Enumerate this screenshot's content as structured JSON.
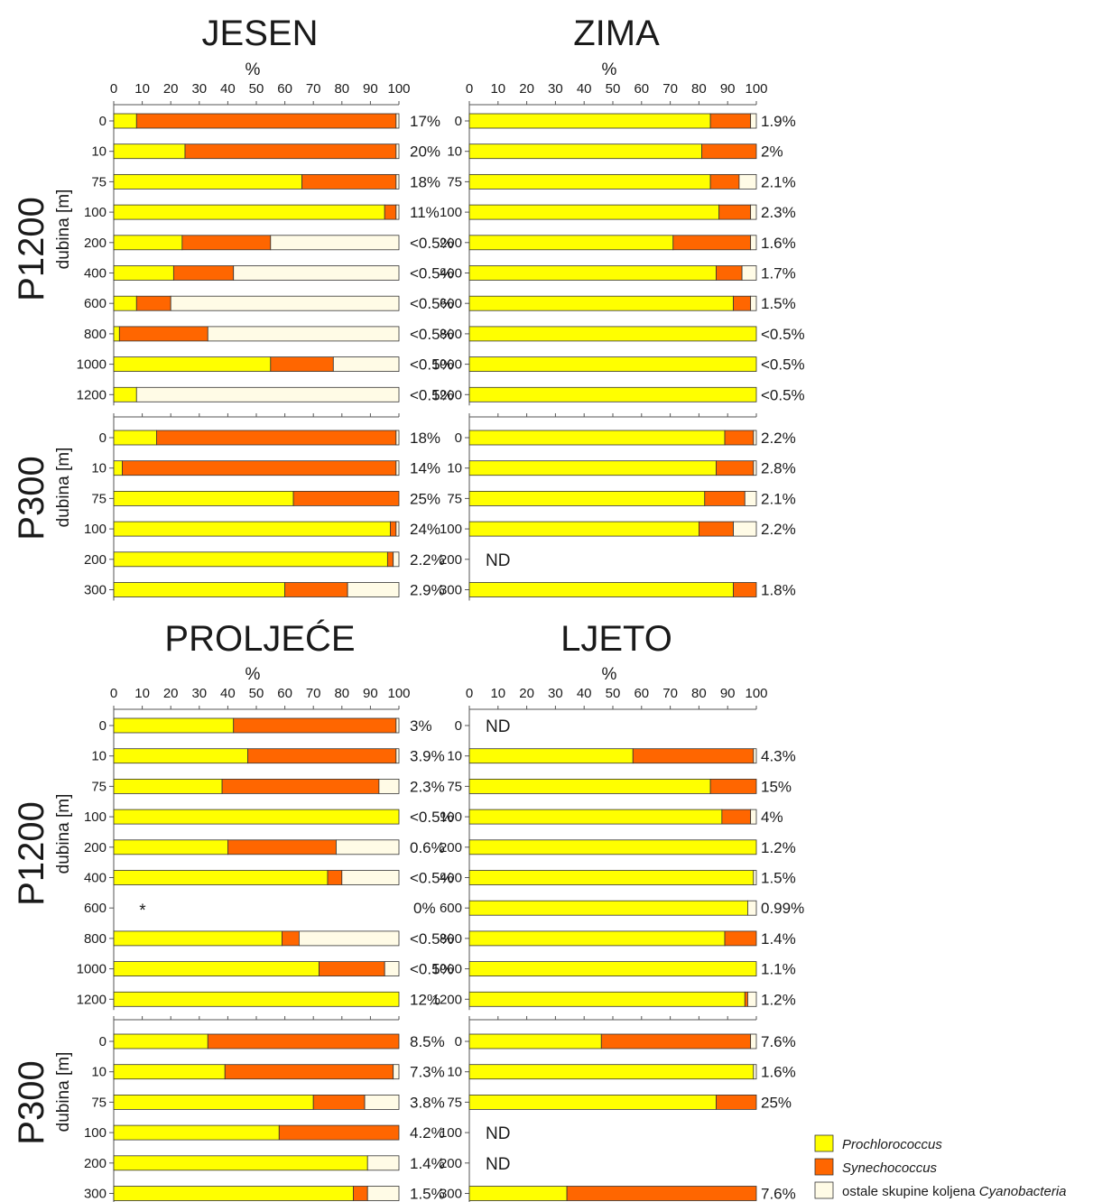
{
  "colors": {
    "Prochlorococcus": "#ffff00",
    "Synechococcus": "#ff6600",
    "ostale": "#fffbe6",
    "outline": "#333333"
  },
  "legend": [
    {
      "key": "Prochlorococcus",
      "label": "Prochlorococcus",
      "italic": true
    },
    {
      "key": "Synechococcus",
      "label": "Synechococcus",
      "italic": true
    },
    {
      "key": "ostale",
      "label_plain": "ostale skupine koljena ",
      "label_italic": "Cyanobacteria"
    }
  ],
  "chart_data": {
    "type": "bar",
    "stacked": true,
    "orientation": "horizontal",
    "xlabel": "%",
    "ylabel": "dubina [m]",
    "xlim": [
      0,
      100
    ],
    "xticks": [
      0,
      10,
      20,
      30,
      40,
      50,
      60,
      70,
      80,
      90,
      100
    ],
    "seasons": [
      {
        "title": "JESEN",
        "stations": [
          {
            "name": "P1200",
            "rows": [
              {
                "depth": "0",
                "values": [
                  8,
                  91,
                  1
                ],
                "label": "17%"
              },
              {
                "depth": "10",
                "values": [
                  25,
                  74,
                  1
                ],
                "label": "20%"
              },
              {
                "depth": "75",
                "values": [
                  66,
                  33,
                  1
                ],
                "label": "18%"
              },
              {
                "depth": "100",
                "values": [
                  95,
                  4,
                  1
                ],
                "label": "11%"
              },
              {
                "depth": "200",
                "values": [
                  24,
                  31,
                  45
                ],
                "label": "<0.5%"
              },
              {
                "depth": "400",
                "values": [
                  21,
                  21,
                  58
                ],
                "label": "<0.5%"
              },
              {
                "depth": "600",
                "values": [
                  8,
                  12,
                  80
                ],
                "label": "<0.5%"
              },
              {
                "depth": "800",
                "values": [
                  2,
                  31,
                  67
                ],
                "label": "<0.5%"
              },
              {
                "depth": "1000",
                "values": [
                  55,
                  22,
                  23
                ],
                "label": "<0.5%"
              },
              {
                "depth": "1200",
                "values": [
                  8,
                  0,
                  92
                ],
                "label": "<0.5%"
              }
            ]
          },
          {
            "name": "P300",
            "rows": [
              {
                "depth": "0",
                "values": [
                  15,
                  84,
                  1
                ],
                "label": "18%"
              },
              {
                "depth": "10",
                "values": [
                  3,
                  96,
                  1
                ],
                "label": "14%"
              },
              {
                "depth": "75",
                "values": [
                  63,
                  37,
                  0
                ],
                "label": "25%"
              },
              {
                "depth": "100",
                "values": [
                  97,
                  2,
                  1
                ],
                "label": "24%"
              },
              {
                "depth": "200",
                "values": [
                  96,
                  2,
                  2
                ],
                "label": "2.2%"
              },
              {
                "depth": "300",
                "values": [
                  60,
                  22,
                  18
                ],
                "label": "2.9%"
              }
            ]
          }
        ]
      },
      {
        "title": "ZIMA",
        "stations": [
          {
            "name": "P1200",
            "rows": [
              {
                "depth": "0",
                "values": [
                  84,
                  14,
                  2
                ],
                "label": "1.9%"
              },
              {
                "depth": "10",
                "values": [
                  81,
                  19,
                  0
                ],
                "label": "2%"
              },
              {
                "depth": "75",
                "values": [
                  84,
                  10,
                  6
                ],
                "label": "2.1%"
              },
              {
                "depth": "100",
                "values": [
                  87,
                  11,
                  2
                ],
                "label": "2.3%"
              },
              {
                "depth": "200",
                "values": [
                  71,
                  27,
                  2
                ],
                "label": "1.6%"
              },
              {
                "depth": "400",
                "values": [
                  86,
                  9,
                  5
                ],
                "label": "1.7%"
              },
              {
                "depth": "600",
                "values": [
                  92,
                  6,
                  2
                ],
                "label": "1.5%"
              },
              {
                "depth": "800",
                "values": [
                  100,
                  0,
                  0
                ],
                "label": "<0.5%"
              },
              {
                "depth": "1000",
                "values": [
                  100,
                  0,
                  0
                ],
                "label": "<0.5%"
              },
              {
                "depth": "1200",
                "values": [
                  100,
                  0,
                  0
                ],
                "label": "<0.5%"
              }
            ]
          },
          {
            "name": "P300",
            "rows": [
              {
                "depth": "0",
                "values": [
                  89,
                  10,
                  1
                ],
                "label": "2.2%"
              },
              {
                "depth": "10",
                "values": [
                  86,
                  13,
                  1
                ],
                "label": "2.8%"
              },
              {
                "depth": "75",
                "values": [
                  82,
                  14,
                  4
                ],
                "label": "2.1%"
              },
              {
                "depth": "100",
                "values": [
                  80,
                  12,
                  8
                ],
                "label": "2.2%"
              },
              {
                "depth": "200",
                "nd": true,
                "label": "ND"
              },
              {
                "depth": "300",
                "values": [
                  92,
                  8,
                  0
                ],
                "label": "1.8%"
              }
            ]
          }
        ]
      },
      {
        "title": "PROLJEĆE",
        "stations": [
          {
            "name": "P1200",
            "rows": [
              {
                "depth": "0",
                "values": [
                  42,
                  57,
                  1
                ],
                "label": "3%"
              },
              {
                "depth": "10",
                "values": [
                  47,
                  52,
                  1
                ],
                "label": "3.9%"
              },
              {
                "depth": "75",
                "values": [
                  38,
                  55,
                  7
                ],
                "label": "2.3%"
              },
              {
                "depth": "100",
                "values": [
                  100,
                  0,
                  0
                ],
                "label": "<0.5%"
              },
              {
                "depth": "200",
                "values": [
                  40,
                  38,
                  22
                ],
                "label": "0.6%"
              },
              {
                "depth": "400",
                "values": [
                  75,
                  5,
                  20
                ],
                "label": "<0.5%"
              },
              {
                "depth": "600",
                "marker": "*",
                "label": "0%"
              },
              {
                "depth": "800",
                "values": [
                  59,
                  6,
                  35
                ],
                "label": "<0.5%"
              },
              {
                "depth": "1000",
                "values": [
                  72,
                  23,
                  5
                ],
                "label": "<0.5%"
              },
              {
                "depth": "1200",
                "values": [
                  100,
                  0,
                  0
                ],
                "label": "12%"
              }
            ]
          },
          {
            "name": "P300",
            "rows": [
              {
                "depth": "0",
                "values": [
                  33,
                  67,
                  0
                ],
                "label": "8.5%"
              },
              {
                "depth": "10",
                "values": [
                  39,
                  59,
                  2
                ],
                "label": "7.3%"
              },
              {
                "depth": "75",
                "values": [
                  70,
                  18,
                  12
                ],
                "label": "3.8%"
              },
              {
                "depth": "100",
                "values": [
                  58,
                  42,
                  0
                ],
                "label": "4.2%"
              },
              {
                "depth": "200",
                "values": [
                  89,
                  0,
                  11
                ],
                "label": "1.4%"
              },
              {
                "depth": "300",
                "values": [
                  84,
                  5,
                  11
                ],
                "label": "1.5%"
              }
            ]
          }
        ]
      },
      {
        "title": "LJETO",
        "stations": [
          {
            "name": "P1200",
            "rows": [
              {
                "depth": "0",
                "nd": true,
                "label": "ND"
              },
              {
                "depth": "10",
                "values": [
                  57,
                  42,
                  1
                ],
                "label": "4.3%"
              },
              {
                "depth": "75",
                "values": [
                  84,
                  16,
                  0
                ],
                "label": "15%"
              },
              {
                "depth": "100",
                "values": [
                  88,
                  10,
                  2
                ],
                "label": "4%"
              },
              {
                "depth": "200",
                "values": [
                  100,
                  0,
                  0
                ],
                "label": "1.2%"
              },
              {
                "depth": "400",
                "values": [
                  99,
                  0,
                  1
                ],
                "label": "1.5%"
              },
              {
                "depth": "600",
                "values": [
                  97,
                  0,
                  3
                ],
                "label": "0.99%"
              },
              {
                "depth": "800",
                "values": [
                  89,
                  11,
                  0
                ],
                "label": "1.4%"
              },
              {
                "depth": "1000",
                "values": [
                  100,
                  0,
                  0
                ],
                "label": "1.1%"
              },
              {
                "depth": "1200",
                "values": [
                  96,
                  1,
                  3
                ],
                "label": "1.2%"
              }
            ]
          },
          {
            "name": "P300",
            "rows": [
              {
                "depth": "0",
                "values": [
                  46,
                  52,
                  2
                ],
                "label": "7.6%"
              },
              {
                "depth": "10",
                "values": [
                  99,
                  0,
                  1
                ],
                "label": "1.6%"
              },
              {
                "depth": "75",
                "values": [
                  86,
                  14,
                  0
                ],
                "label": "25%"
              },
              {
                "depth": "100",
                "nd": true,
                "label": "ND"
              },
              {
                "depth": "200",
                "nd": true,
                "label": "ND"
              },
              {
                "depth": "300",
                "values": [
                  34,
                  66,
                  0
                ],
                "label": "7.6%"
              }
            ]
          }
        ]
      }
    ]
  }
}
